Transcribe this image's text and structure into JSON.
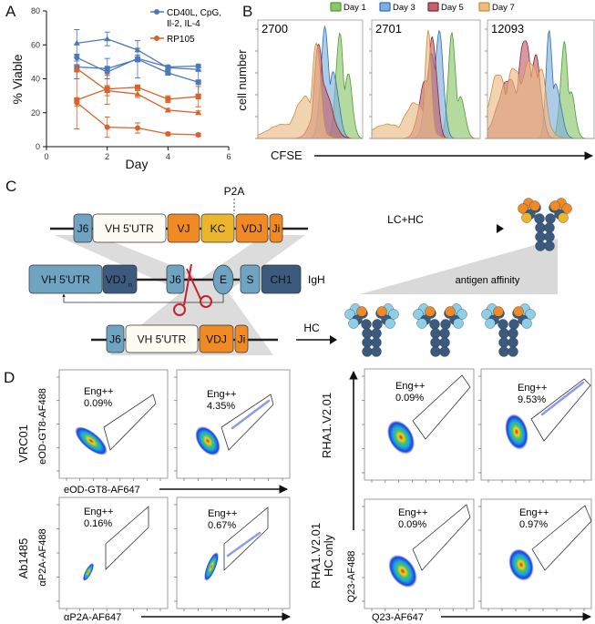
{
  "panel_labels": {
    "a": "A",
    "b": "B",
    "c": "C",
    "d": "D"
  },
  "chart_data": [
    {
      "panel": "A",
      "type": "line",
      "xlabel": "Day",
      "ylabel": "% Viable",
      "xlim": [
        0,
        6
      ],
      "ylim": [
        0,
        80
      ],
      "xticks": [
        "0",
        "2",
        "4",
        "6"
      ],
      "yticks": [
        "0",
        "20",
        "40",
        "60",
        "80"
      ],
      "grid": false,
      "legend_position": "top-right",
      "legend": [
        {
          "label": "CD40L, CpG,",
          "label2": "Il-2, IL-4",
          "color": "#4a78b8"
        },
        {
          "label": "RP105",
          "color": "#d9622b"
        }
      ],
      "x": [
        1,
        2,
        3,
        4,
        5
      ],
      "series": [
        {
          "group": "CD40L, CpG, Il-2, IL-4",
          "marker": "circle",
          "color": "#4a78b8",
          "values": [
            52.5,
            44,
            52,
            47,
            47.5
          ],
          "error": [
            2,
            2,
            2,
            1,
            1
          ]
        },
        {
          "group": "CD40L, CpG, Il-2, IL-4",
          "marker": "square",
          "color": "#4a78b8",
          "values": [
            47,
            46,
            51.5,
            43.5,
            38
          ],
          "error": [
            7,
            6,
            11,
            1,
            7
          ]
        },
        {
          "group": "CD40L, CpG, Il-2, IL-4",
          "marker": "triangle",
          "color": "#4a78b8",
          "values": [
            61,
            63.5,
            57,
            46.5,
            45.5
          ],
          "error": [
            8,
            4,
            1,
            1,
            1
          ]
        },
        {
          "group": "RP105",
          "marker": "square",
          "color": "#d9622b",
          "values": [
            27.5,
            34,
            35,
            28,
            29.5
          ],
          "error": [
            17,
            9,
            1,
            2,
            6
          ]
        },
        {
          "group": "RP105",
          "marker": "triangle",
          "color": "#d9622b",
          "values": [
            46,
            33,
            31,
            21.5,
            20
          ],
          "error": [
            2,
            3,
            2,
            1,
            1
          ]
        },
        {
          "group": "RP105",
          "marker": "circle",
          "color": "#d9622b",
          "values": [
            26,
            11.5,
            11,
            7.5,
            7
          ],
          "error": [
            2,
            6,
            3,
            1,
            1
          ]
        }
      ]
    },
    {
      "panel": "B",
      "type": "area",
      "xlabel": "CFSE",
      "ylabel": "cell number",
      "legend_position": "top",
      "legend": [
        {
          "label": "Day 1",
          "color": "#8cc66b",
          "stroke": "#4f9a2e"
        },
        {
          "label": "Day 3",
          "color": "#7fb0dc",
          "stroke": "#2f6fb5"
        },
        {
          "label": "Day 5",
          "color": "#c0636e",
          "stroke": "#8e2230"
        },
        {
          "label": "Day 7",
          "color": "#ebbb85",
          "stroke": "#d08a3c"
        }
      ],
      "panels": [
        "2700",
        "2701",
        "12093"
      ]
    }
  ],
  "diagram": {
    "top_construct": [
      "J6",
      "VH 5'UTR",
      "VJ",
      "KC",
      "VDJ",
      "Ji"
    ],
    "p2a": "P2A",
    "locus": {
      "segments": [
        "VH 5'UTR",
        "VDJ",
        "J6",
        "E",
        "S",
        "CH1"
      ],
      "vdj_subscript": "n",
      "label": "IgH"
    },
    "bottom_construct": [
      "J6",
      "VH 5'UTR",
      "VDJ",
      "Ji"
    ],
    "arrow_top": "LC+HC",
    "arrow_bottom": "HC",
    "affinity": "antigen affinity",
    "colors": {
      "light_blue": "#6ea3c2",
      "dark_blue": "#3b5a7e",
      "orange": "#ef8a24",
      "yellow": "#ebb62c",
      "cream": "#fdfcf3",
      "scissors": "#c8202a"
    }
  },
  "flow": {
    "left": {
      "rows": [
        {
          "name": "VRC01",
          "ylabel": "eOD-GT8-AF488",
          "xlabel": "eOD-GT8-AF647",
          "gates": [
            {
              "label": "Eng++",
              "pct": "0.09%"
            },
            {
              "label": "Eng++",
              "pct": "4.35%"
            }
          ]
        },
        {
          "name": "Ab1485",
          "ylabel": "αP2A-AF488",
          "xlabel": "αP2A-AF647",
          "gates": [
            {
              "label": "Eng++",
              "pct": "0.16%"
            },
            {
              "label": "Eng++",
              "pct": "0.67%"
            }
          ]
        }
      ]
    },
    "right": {
      "ylabel": "Q23-AF488",
      "xlabel": "Q23-AF647",
      "rows": [
        {
          "name": "RHA1.V2.01",
          "gates": [
            {
              "label": "Eng++",
              "pct": "0.09%"
            },
            {
              "label": "Eng++",
              "pct": "9.53%"
            }
          ]
        },
        {
          "name": "RHA1.V2.01",
          "name2": "HC only",
          "gates": [
            {
              "label": "Eng++",
              "pct": "0.09%"
            },
            {
              "label": "Eng++",
              "pct": "0.97%"
            }
          ]
        }
      ]
    }
  }
}
